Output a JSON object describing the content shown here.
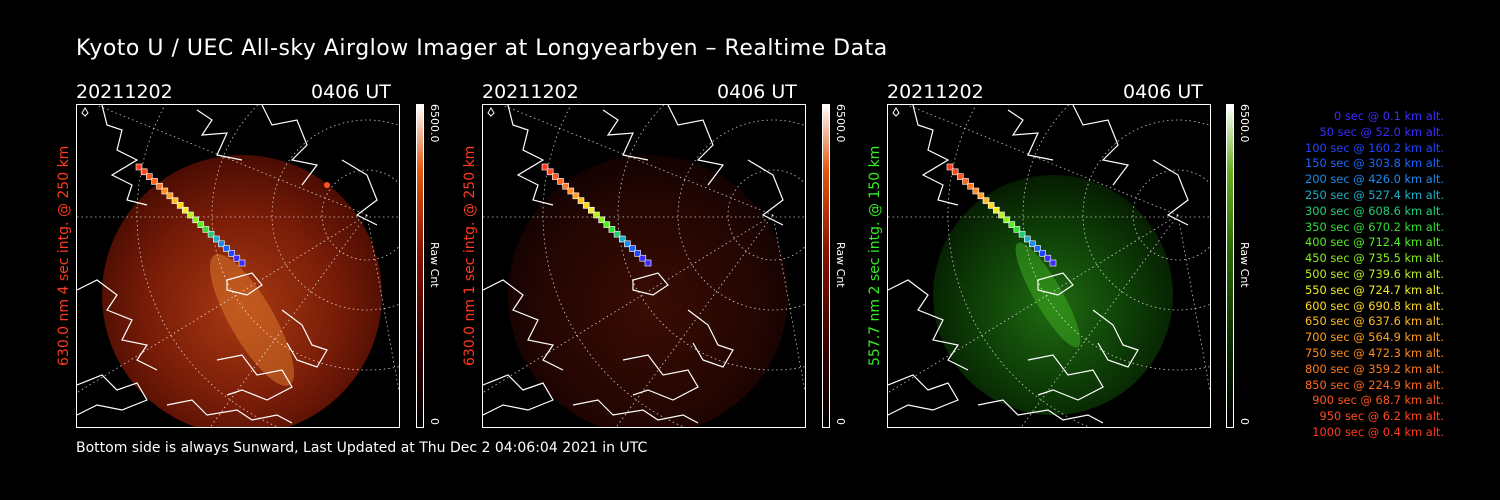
{
  "title": "Kyoto U / UEC All-sky Airglow Imager at Longyearbyen – Realtime Data",
  "footer": "Bottom side is always Sunward, Last Updated at Thu Dec  2 04:06:04 2021 in UTC",
  "panels": [
    {
      "date": "20211202",
      "time": "0406 UT",
      "ylabel": "630.0 nm 4 sec intg. @ 250 km",
      "ylabel_color": "#ff3a1e",
      "cbar_max": "6500.0",
      "cbar_unit": "Raw Cnt",
      "cbar_min": "0",
      "tint": "red",
      "intensity": "high"
    },
    {
      "date": "20211202",
      "time": "0406 UT",
      "ylabel": "630.0 nm 1 sec intg. @ 250 km",
      "ylabel_color": "#ff3a1e",
      "cbar_max": "6500.0",
      "cbar_unit": "Raw Cnt",
      "cbar_min": "0",
      "tint": "red",
      "intensity": "low"
    },
    {
      "date": "20211202",
      "time": "0406 UT",
      "ylabel": "557.7 nm 2 sec intg. @ 150 km",
      "ylabel_color": "#33ee22",
      "cbar_max": "6500.0",
      "cbar_unit": "Raw Cnt",
      "cbar_min": "0",
      "tint": "green",
      "intensity": "medium"
    }
  ],
  "legend": [
    {
      "text": "0 sec @   0.1 km alt.",
      "color": "#3b2cff"
    },
    {
      "text": "50 sec @  52.0 km alt.",
      "color": "#3b2cff"
    },
    {
      "text": "100 sec @ 160.2 km alt.",
      "color": "#2244ff"
    },
    {
      "text": "150 sec @ 303.8 km alt.",
      "color": "#1a66ff"
    },
    {
      "text": "200 sec @ 426.0 km alt.",
      "color": "#1f8aee"
    },
    {
      "text": "250 sec @ 527.4 km alt.",
      "color": "#1bb0c8"
    },
    {
      "text": "300 sec @ 608.6 km alt.",
      "color": "#22cc77"
    },
    {
      "text": "350 sec @ 670.2 km alt.",
      "color": "#33dd33"
    },
    {
      "text": "400 sec @ 712.4 km alt.",
      "color": "#55ee22"
    },
    {
      "text": "450 sec @ 735.5 km alt.",
      "color": "#88f01a"
    },
    {
      "text": "500 sec @ 739.6 km alt.",
      "color": "#bbee22"
    },
    {
      "text": "550 sec @ 724.7 km alt.",
      "color": "#eeee22"
    },
    {
      "text": "600 sec @ 690.8 km alt.",
      "color": "#ffd81e"
    },
    {
      "text": "650 sec @ 637.6 km alt.",
      "color": "#ffbb22"
    },
    {
      "text": "700 sec @ 564.9 km alt.",
      "color": "#ffa020"
    },
    {
      "text": "750 sec @ 472.3 km alt.",
      "color": "#ff8c1e"
    },
    {
      "text": "800 sec @ 359.2 km alt.",
      "color": "#ff7a1e"
    },
    {
      "text": "850 sec @ 224.9 km alt.",
      "color": "#ff681e"
    },
    {
      "text": "900 sec @  68.7 km alt.",
      "color": "#ff561e"
    },
    {
      "text": "950 sec @   6.2 km alt.",
      "color": "#ff4a1e"
    },
    {
      "text": "1000 sec @   0.4 km alt.",
      "color": "#ff3a1e"
    }
  ]
}
